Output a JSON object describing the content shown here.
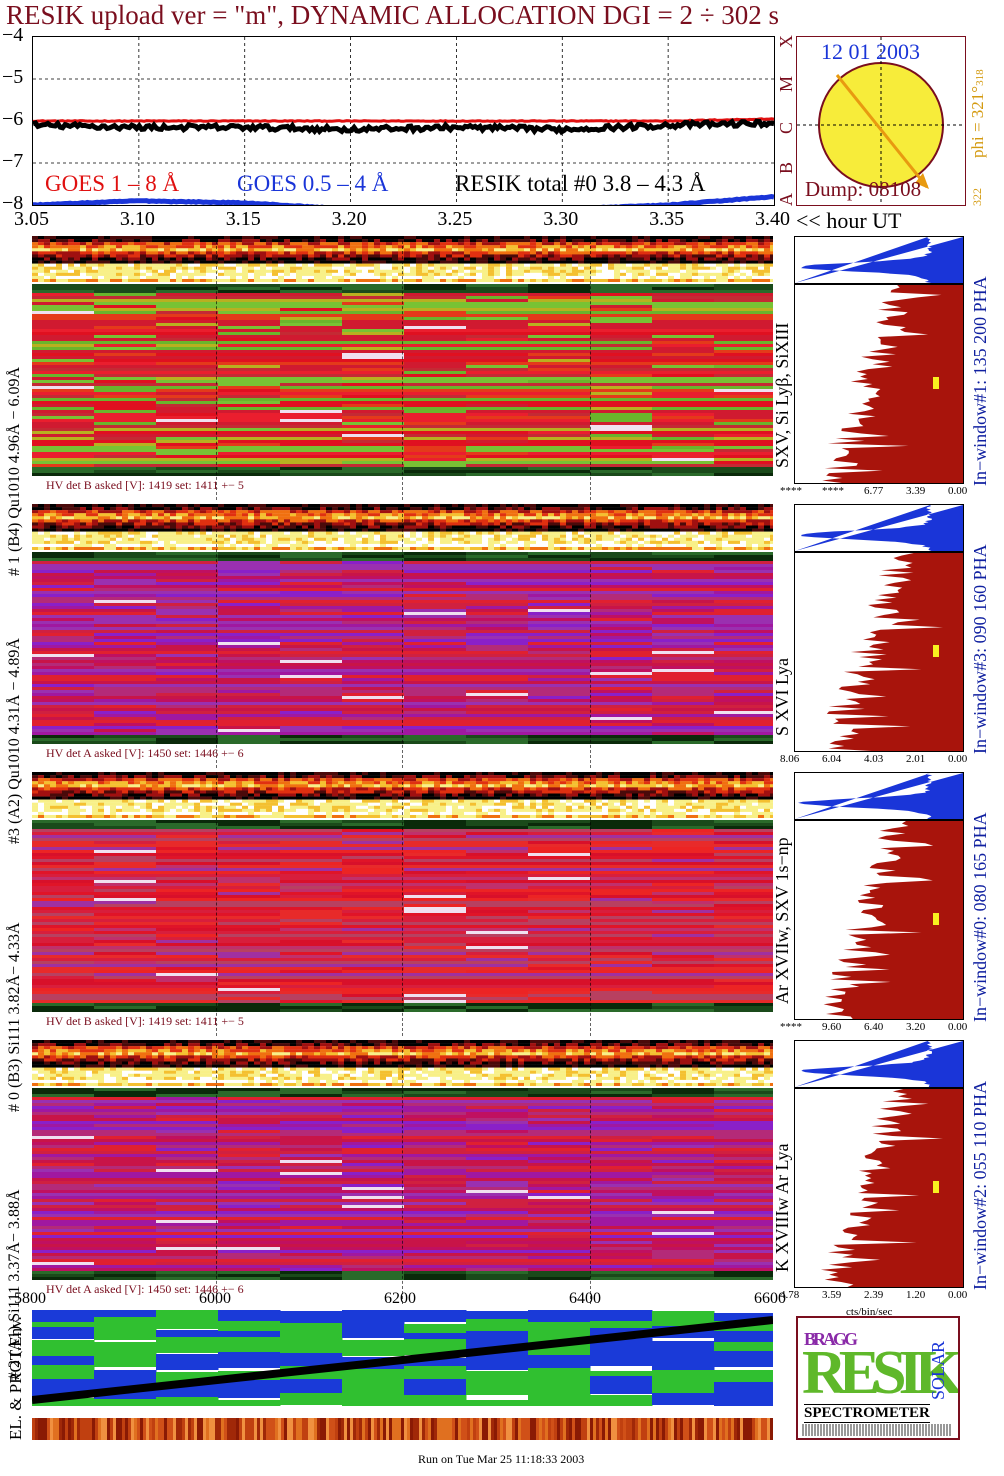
{
  "header": {
    "title": "RESIK upload ver = \"m\", DYNAMIC ALLOCATION  DGI =   2 ÷ 302 s"
  },
  "goes": {
    "yticks": [
      "−4",
      "−5",
      "−6",
      "−7",
      "−8"
    ],
    "class_labels": [
      "X",
      "M",
      "C",
      "B",
      "A"
    ],
    "legend_goes_long": "GOES 1 – 8 Å",
    "legend_goes_short": "GOES 0.5 – 4 Å",
    "legend_resik": "RESIK total #0  3.8 – 4.3 Å",
    "xticks": [
      "3.05",
      "3.10",
      "3.15",
      "3.20",
      "3.25",
      "3.30",
      "3.35",
      "3.40"
    ],
    "xlabel": "<< hour UT",
    "colors": {
      "goes_long": "#e01010",
      "goes_short": "#1a35d8",
      "resik": "#000000"
    }
  },
  "sun": {
    "date": "12 01 2003",
    "dump": "Dump: 08108",
    "phi": "phi = 321°",
    "phi_sub": "318",
    "phi_bottom": "322"
  },
  "detectors": [
    {
      "label": "# 1 (B4) Qu1010 4.96Å − 6.09Å",
      "lines": "SXV, Si Lyβ, SiXIII",
      "inwindow": "In−window#1:  135 200 PHA",
      "hv": "HV det B asked [V]:  1419 set:  1411  +−    5",
      "axis": [
        "****",
        "****",
        "6.77",
        "3.39",
        "0.00"
      ],
      "palette": "green"
    },
    {
      "label": "#3 (A2) Qu1010  4.31Å − 4.89Å",
      "lines": "S XVI Lya",
      "inwindow": "In−window#3:  090 160 PHA",
      "hv": "HV det A asked [V]:  1450 set:  1446  +−    6",
      "axis": [
        "8.06",
        "6.04",
        "4.03",
        "2.01",
        "0.00"
      ],
      "palette": "purple"
    },
    {
      "label": "# 0 (B3) Si111  3.82Å− 4.33Å",
      "lines": "Ar XVIIw,  SXV 1s−np",
      "inwindow": "In−window#0:  080 165 PHA",
      "hv": "HV det B asked [V]:  1419 set:  1411  +−    5",
      "axis": [
        "****",
        "9.60",
        "6.40",
        "3.20",
        "0.00"
      ],
      "palette": "red"
    },
    {
      "label": "# 2 (A1) Si111  3.37Å− 3.88Å",
      "lines": "K XVIIIw  Ar Lya",
      "inwindow": "In−window#2:  055 110 PHA",
      "hv": "HV det A asked [V]:  1450 set:  1446  +−    6",
      "axis": [
        "4.78",
        "3.59",
        "2.39",
        "1.20",
        "0.00"
      ],
      "palette": "purple"
    }
  ],
  "count_unit": "cts/bin/sec",
  "env": {
    "label": "EL. & PROT.Env.",
    "xticks": [
      "5800",
      "6000",
      "6200",
      "6400",
      "6600"
    ]
  },
  "logo": {
    "bragg": "BRAGG",
    "resik": "RESIK",
    "solar": "SOLAR",
    "spectrometer": "SPECTROMETER"
  },
  "footer": {
    "run": "Run on Tue Mar 25 11:18:33 2003"
  },
  "chart_data": [
    {
      "type": "line",
      "x": [
        3.05,
        3.1,
        3.15,
        3.2,
        3.25,
        3.3,
        3.35,
        3.4
      ],
      "xlabel": "<< hour UT",
      "ylim": [
        -8,
        -4
      ],
      "series": [
        {
          "name": "GOES 1 – 8 Å",
          "values": [
            -6.0,
            -6.0,
            -6.0,
            -6.0,
            -6.0,
            -6.0,
            -6.0,
            -5.95
          ]
        },
        {
          "name": "GOES 0.5 – 4 Å",
          "values": [
            -8.0,
            -7.9,
            -7.95,
            -8.1,
            -8.1,
            -8.1,
            -8.0,
            -7.8
          ]
        },
        {
          "name": "RESIK total #0  3.8 – 4.3 Å",
          "values": [
            -6.1,
            -6.15,
            -6.15,
            -6.2,
            -6.15,
            -6.2,
            -6.1,
            -6.05
          ]
        }
      ]
    }
  ]
}
